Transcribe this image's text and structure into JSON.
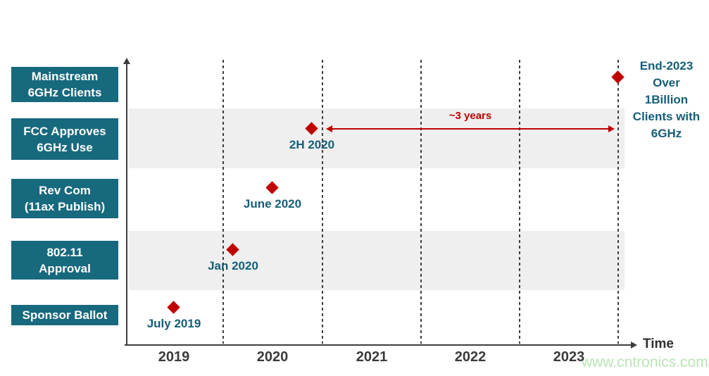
{
  "page": {
    "watermark": "www.cntronics.com"
  },
  "colors": {
    "category_box": "#17697e",
    "teal_text": "#155e78",
    "milestone_red": "#c00000",
    "row_band": "#efefef",
    "axis": "#3d3d3d",
    "watermark": "#b9e6b4"
  },
  "chart_data": {
    "type": "scatter",
    "title": "",
    "xlabel": "Time",
    "grid": "vertical-dashed",
    "legend": null,
    "x_axis": {
      "range": [
        2019,
        2024.2
      ],
      "tick_labels": [
        "2019",
        "2020",
        "2021",
        "2022",
        "2023"
      ],
      "tick_years": [
        2019.5,
        2020.5,
        2021.5,
        2022.5,
        2023.5
      ],
      "gridline_years": [
        2020,
        2021,
        2022,
        2023,
        2024
      ]
    },
    "rows": [
      {
        "label": "Mainstream\n6GHz Clients",
        "band": false
      },
      {
        "label": "FCC Approves\n6GHz Use",
        "band": true
      },
      {
        "label": "Rev Com\n(11ax Publish)",
        "band": false
      },
      {
        "label": "802.11\nApproval",
        "band": true
      },
      {
        "label": "Sponsor Ballot",
        "band": false
      }
    ],
    "points": [
      {
        "row": 4,
        "name": "Sponsor Ballot",
        "label": "July 2019",
        "x_year": 2019.5
      },
      {
        "row": 3,
        "name": "802.11 Approval",
        "label": "Jan 2020",
        "x_year": 2020.1
      },
      {
        "row": 2,
        "name": "Rev Com (11ax Publish)",
        "label": "June 2020",
        "x_year": 2020.5
      },
      {
        "row": 1,
        "name": "FCC Approves 6GHz Use",
        "label": "2H 2020",
        "x_year": 2020.9
      },
      {
        "row": 0,
        "name": "Mainstream 6GHz Clients",
        "label": "",
        "x_year": 2024.0
      }
    ],
    "arrow_annotation": {
      "text": "~3 years",
      "from_year": 2021.05,
      "to_year": 2023.95,
      "row": 1
    },
    "end_note": "End-2023\nOver\n1Billion\nClients with\n6GHz"
  }
}
